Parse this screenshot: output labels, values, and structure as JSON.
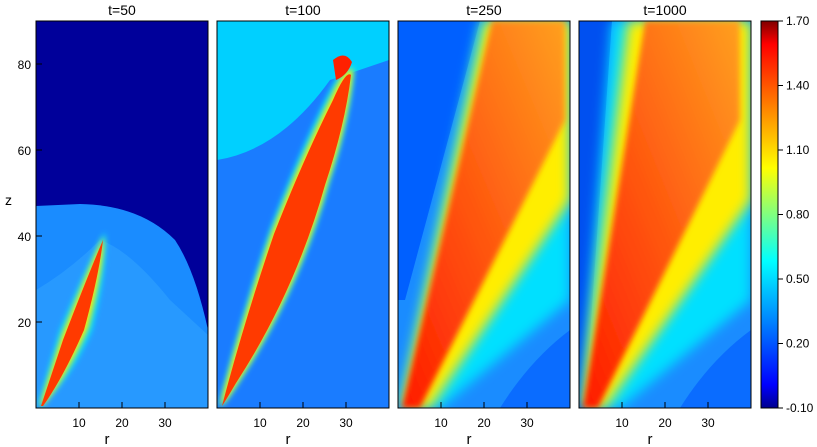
{
  "chart_data": {
    "type": "heatmap",
    "xlabel": "r",
    "ylabel": "z",
    "xlim": [
      0,
      40
    ],
    "ylim": [
      0,
      90
    ],
    "x_ticks": [
      10,
      20,
      30
    ],
    "y_ticks": [
      20,
      40,
      60,
      80
    ],
    "colorbar": {
      "min": -0.1,
      "max": 1.7,
      "ticks": [
        "1.70",
        "1.40",
        "1.10",
        "0.80",
        "0.50",
        "0.20",
        "-0.10"
      ],
      "colormap": [
        "#00008f",
        "#0000ff",
        "#0080ff",
        "#00ffff",
        "#80ff80",
        "#ffff00",
        "#ff8000",
        "#ff0000",
        "#800000"
      ]
    },
    "panels": [
      {
        "title": "t=50"
      },
      {
        "title": "t=100"
      },
      {
        "title": "t=250"
      },
      {
        "title": "t=1000"
      }
    ]
  }
}
